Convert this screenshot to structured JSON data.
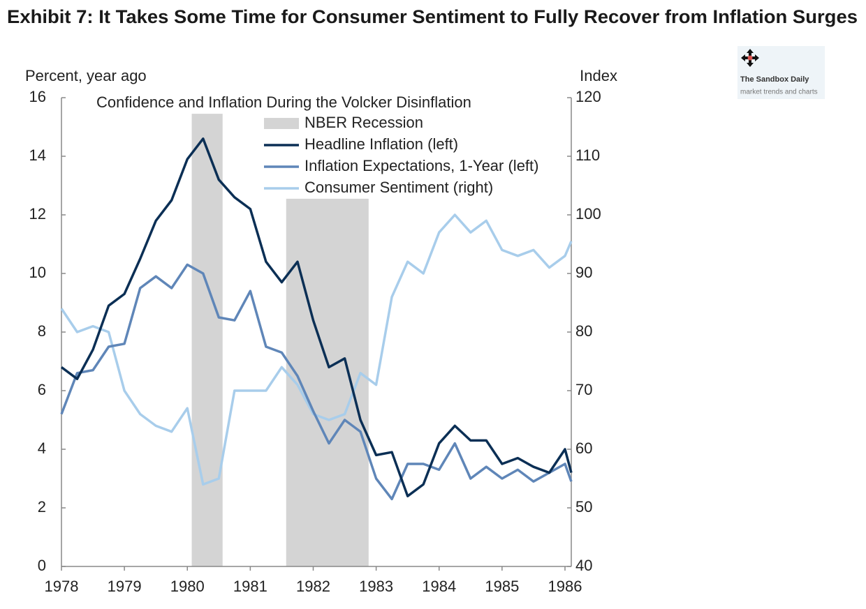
{
  "chart_data": {
    "type": "line",
    "title": "Exhibit 7: It Takes Some Time for Consumer Sentiment to Fully Recover from Inflation Surges",
    "subtitle": "Confidence and Inflation During the Volcker Disinflation",
    "y_label": "Percent, year ago",
    "y2_label": "Index",
    "x": [
      1978,
      1978.25,
      1978.5,
      1978.75,
      1979,
      1979.25,
      1979.5,
      1979.75,
      1980,
      1980.25,
      1980.5,
      1980.75,
      1981,
      1981.25,
      1981.5,
      1981.75,
      1982,
      1982.25,
      1982.5,
      1982.75,
      1983,
      1983.25,
      1983.5,
      1983.75,
      1984,
      1984.25,
      1984.5,
      1984.75,
      1985,
      1985.25,
      1985.5,
      1985.75,
      1986,
      1986.1
    ],
    "xlim": [
      1978,
      1986.1
    ],
    "xticks": [
      1978,
      1979,
      1980,
      1981,
      1982,
      1983,
      1984,
      1985,
      1986
    ],
    "ylim": [
      0,
      16
    ],
    "yticks": [
      0,
      2,
      4,
      6,
      8,
      10,
      12,
      14,
      16
    ],
    "y2lim": [
      40,
      120
    ],
    "y2ticks": [
      40,
      50,
      60,
      70,
      80,
      90,
      100,
      110,
      120
    ],
    "recession_name": "NBER Recession",
    "recession_color": "#d4d4d4",
    "recessions": [
      {
        "start": 1980.07,
        "end": 1980.56,
        "top": 15.45
      },
      {
        "start": 1981.57,
        "end": 1982.88,
        "top": 12.55
      }
    ],
    "series": [
      {
        "name": "Headline Inflation (left)",
        "color": "#0b2f55",
        "axis": "y",
        "values": [
          6.8,
          6.4,
          7.4,
          8.9,
          9.3,
          10.5,
          11.8,
          12.5,
          13.9,
          14.6,
          13.2,
          12.6,
          12.2,
          10.4,
          9.7,
          10.4,
          8.4,
          6.8,
          7.1,
          5.0,
          3.8,
          3.9,
          2.4,
          2.8,
          4.2,
          4.8,
          4.3,
          4.3,
          3.5,
          3.7,
          3.4,
          3.2,
          4.0,
          3.2
        ]
      },
      {
        "name": "Inflation Expectations, 1-Year (left)",
        "color": "#5f86b8",
        "axis": "y",
        "values": [
          5.2,
          6.6,
          6.7,
          7.5,
          7.6,
          9.5,
          9.9,
          9.5,
          10.3,
          10.0,
          8.5,
          8.4,
          9.4,
          7.5,
          7.3,
          6.5,
          5.3,
          4.2,
          5.0,
          4.6,
          3.0,
          2.3,
          3.5,
          3.5,
          3.3,
          4.2,
          3.0,
          3.4,
          3.0,
          3.3,
          2.9,
          3.2,
          3.5,
          2.9
        ]
      },
      {
        "name": "Consumer Sentiment (right)",
        "color": "#a8cdeb",
        "axis": "y2",
        "values": [
          84,
          80,
          81,
          80,
          70,
          66,
          64,
          63,
          67,
          54,
          55,
          70,
          70,
          70,
          74,
          71,
          66,
          65,
          66,
          73,
          71,
          86,
          92,
          90,
          97,
          100,
          97,
          99,
          94,
          93,
          94,
          91,
          93,
          95.5
        ]
      }
    ],
    "logo": {
      "title": "The Sandbox Daily",
      "subtitle": "market trends and charts"
    }
  }
}
